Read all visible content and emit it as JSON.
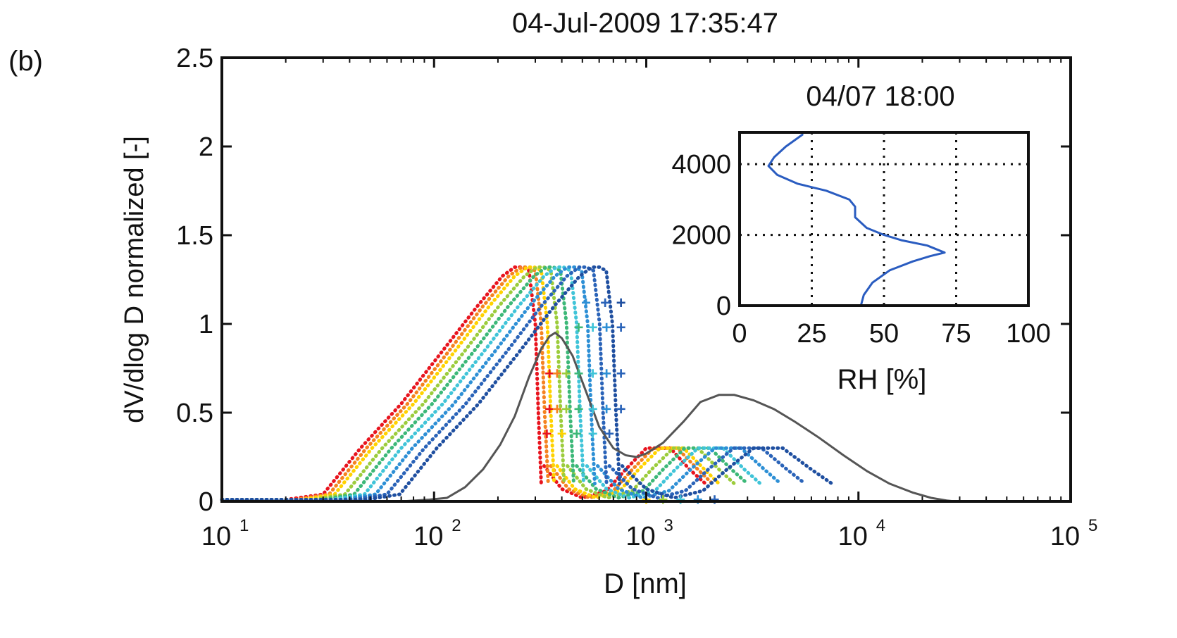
{
  "panel_label": "(b)",
  "chart_data": [
    {
      "type": "line",
      "title": "04-Jul-2009 17:35:47",
      "xlabel": "D [nm]",
      "ylabel": "dV/dlog D normalized [-]",
      "xscale": "log",
      "xlim": [
        10,
        100000
      ],
      "ylim": [
        0,
        2.5
      ],
      "x_ticks": [
        10,
        100,
        1000,
        10000,
        100000
      ],
      "x_tick_labels": [
        {
          "base": "10",
          "exp": "1"
        },
        {
          "base": "10",
          "exp": "2"
        },
        {
          "base": "10",
          "exp": "3"
        },
        {
          "base": "10",
          "exp": "4"
        },
        {
          "base": "10",
          "exp": "5"
        }
      ],
      "y_ticks": [
        0,
        0.5,
        1,
        1.5,
        2,
        2.5
      ],
      "y_tick_labels": [
        "0",
        "0.5",
        "1",
        "1.5",
        "2",
        "2.5"
      ],
      "grid": false,
      "colormap": [
        "#e8141e",
        "#f58220",
        "#ffd200",
        "#9ccc3c",
        "#3cb878",
        "#40c4d8",
        "#2d8fd5",
        "#2a63b8",
        "#1f4fa0"
      ],
      "colormap_note": "colored dotted curves are a family of distributions, red (first) to blue (last)",
      "series": [
        {
          "color": "#e8141e",
          "style": "dotted",
          "fine_mode": {
            "x": [
              10,
              20,
              30,
              45,
              70,
              110,
              160,
              210,
              240,
              260,
              280,
              300,
              310,
              320
            ],
            "y": [
              0.01,
              0.01,
              0.04,
              0.3,
              0.55,
              0.85,
              1.1,
              1.27,
              1.32,
              1.32,
              1.3,
              1.0,
              0.5,
              0.1
            ]
          },
          "coarse_mode": {
            "x": [
              330,
              400,
              500,
              650,
              800,
              1000,
              1300,
              1600,
              1900
            ],
            "y": [
              0.2,
              0.07,
              0.02,
              0.06,
              0.18,
              0.3,
              0.3,
              0.18,
              0.1
            ]
          }
        },
        {
          "color": "#f58220",
          "style": "dotted",
          "fine_mode": {
            "x": [
              10,
              22,
              32,
              48,
              75,
              118,
              170,
              225,
              258,
              278,
              300,
              320,
              332,
              345
            ],
            "y": [
              0.01,
              0.01,
              0.04,
              0.3,
              0.55,
              0.85,
              1.1,
              1.27,
              1.32,
              1.32,
              1.3,
              1.0,
              0.5,
              0.1
            ]
          },
          "coarse_mode": {
            "x": [
              355,
              430,
              540,
              700,
              860,
              1080,
              1400,
              1750,
              2050
            ],
            "y": [
              0.2,
              0.07,
              0.02,
              0.06,
              0.18,
              0.3,
              0.3,
              0.18,
              0.1
            ]
          }
        },
        {
          "color": "#ffd200",
          "style": "dotted",
          "fine_mode": {
            "x": [
              10,
              24,
              34,
              51,
              80,
              126,
              182,
              240,
              275,
              297,
              320,
              342,
              355,
              368
            ],
            "y": [
              0.01,
              0.01,
              0.04,
              0.3,
              0.55,
              0.85,
              1.1,
              1.27,
              1.32,
              1.32,
              1.3,
              1.0,
              0.5,
              0.1
            ]
          },
          "coarse_mode": {
            "x": [
              380,
              460,
              580,
              750,
              920,
              1160,
              1500,
              1880,
              2200
            ],
            "y": [
              0.2,
              0.07,
              0.02,
              0.06,
              0.18,
              0.3,
              0.3,
              0.18,
              0.1
            ]
          }
        },
        {
          "color": "#9ccc3c",
          "style": "dotted",
          "fine_mode": {
            "x": [
              10,
              27,
              38,
              57,
              89,
              140,
              202,
              267,
              305,
              330,
              355,
              380,
              395,
              410
            ],
            "y": [
              0.01,
              0.01,
              0.04,
              0.3,
              0.55,
              0.85,
              1.1,
              1.27,
              1.32,
              1.32,
              1.3,
              1.0,
              0.5,
              0.1
            ]
          },
          "coarse_mode": {
            "x": [
              425,
              520,
              660,
              860,
              1060,
              1340,
              1750,
              2200,
              2600
            ],
            "y": [
              0.2,
              0.07,
              0.02,
              0.06,
              0.18,
              0.3,
              0.3,
              0.18,
              0.1
            ]
          }
        },
        {
          "color": "#3cb878",
          "style": "dotted",
          "fine_mode": {
            "x": [
              10,
              30,
              42,
              63,
              98,
              155,
              224,
              296,
              338,
              366,
              394,
              421,
              438,
              455
            ],
            "y": [
              0.01,
              0.01,
              0.04,
              0.3,
              0.55,
              0.85,
              1.1,
              1.27,
              1.32,
              1.32,
              1.3,
              1.0,
              0.5,
              0.1
            ]
          },
          "coarse_mode": {
            "x": [
              470,
              580,
              740,
              970,
              1200,
              1520,
              2000,
              2520,
              3000
            ],
            "y": [
              0.2,
              0.07,
              0.02,
              0.06,
              0.18,
              0.3,
              0.3,
              0.18,
              0.1
            ]
          }
        },
        {
          "color": "#40c4d8",
          "style": "dotted",
          "fine_mode": {
            "x": [
              10,
              33,
              47,
              70,
              110,
              173,
              250,
              330,
              377,
              408,
              440,
              470,
              488,
              507
            ],
            "y": [
              0.01,
              0.01,
              0.04,
              0.3,
              0.55,
              0.85,
              1.1,
              1.27,
              1.32,
              1.32,
              1.3,
              1.0,
              0.5,
              0.1
            ]
          },
          "coarse_mode": {
            "x": [
              525,
              650,
              830,
              1100,
              1370,
              1750,
              2300,
              2900,
              3450
            ],
            "y": [
              0.2,
              0.07,
              0.02,
              0.06,
              0.18,
              0.3,
              0.3,
              0.18,
              0.1
            ]
          }
        },
        {
          "color": "#2d8fd5",
          "style": "dotted",
          "fine_mode": {
            "x": [
              10,
              37,
              53,
              79,
              124,
              195,
              281,
              372,
              425,
              460,
              496,
              530,
              550,
              572
            ],
            "y": [
              0.01,
              0.01,
              0.04,
              0.3,
              0.55,
              0.85,
              1.1,
              1.27,
              1.32,
              1.32,
              1.3,
              1.0,
              0.5,
              0.1
            ]
          },
          "coarse_mode": {
            "x": [
              590,
              740,
              960,
              1280,
              1620,
              2100,
              2800,
              3600,
              4300
            ],
            "y": [
              0.2,
              0.07,
              0.02,
              0.06,
              0.18,
              0.3,
              0.3,
              0.18,
              0.1
            ]
          }
        },
        {
          "color": "#2a63b8",
          "style": "dotted",
          "fine_mode": {
            "x": [
              10,
              42,
              60,
              90,
              141,
              222,
              320,
              423,
              483,
              523,
              564,
              603,
              626,
              650
            ],
            "y": [
              0.01,
              0.01,
              0.04,
              0.3,
              0.55,
              0.85,
              1.1,
              1.27,
              1.32,
              1.32,
              1.3,
              1.0,
              0.5,
              0.1
            ]
          },
          "coarse_mode": {
            "x": [
              670,
              860,
              1130,
              1530,
              1960,
              2580,
              3500,
              4600,
              5600
            ],
            "y": [
              0.2,
              0.07,
              0.02,
              0.06,
              0.18,
              0.3,
              0.3,
              0.18,
              0.1
            ]
          }
        },
        {
          "color": "#1f4fa0",
          "style": "dotted",
          "fine_mode": {
            "x": [
              10,
              48,
              69,
              103,
              162,
              255,
              368,
              486,
              555,
              601,
              648,
              693,
              720,
              748
            ],
            "y": [
              0.01,
              0.01,
              0.04,
              0.3,
              0.55,
              0.85,
              1.1,
              1.27,
              1.32,
              1.32,
              1.3,
              1.0,
              0.5,
              0.1
            ]
          },
          "coarse_mode": {
            "x": [
              770,
              1000,
              1350,
              1850,
              2400,
              3200,
              4400,
              6000,
              7500
            ],
            "y": [
              0.2,
              0.07,
              0.02,
              0.06,
              0.18,
              0.3,
              0.3,
              0.18,
              0.1
            ]
          }
        },
        {
          "color": "#555555",
          "style": "solid",
          "x": [
            10,
            70,
            95,
            115,
            140,
            170,
            205,
            240,
            280,
            320,
            350,
            372,
            400,
            450,
            520,
            600,
            700,
            800,
            900,
            1000,
            1200,
            1500,
            1800,
            2200,
            2600,
            3200,
            4000,
            5000,
            6500,
            8500,
            11000,
            14000,
            18000,
            22000,
            26000,
            28500
          ],
          "y": [
            0,
            0,
            0.01,
            0.02,
            0.08,
            0.18,
            0.32,
            0.48,
            0.7,
            0.86,
            0.93,
            0.95,
            0.92,
            0.82,
            0.62,
            0.42,
            0.3,
            0.26,
            0.25,
            0.27,
            0.33,
            0.45,
            0.56,
            0.6,
            0.6,
            0.57,
            0.52,
            0.45,
            0.36,
            0.26,
            0.17,
            0.1,
            0.05,
            0.02,
            0.005,
            0
          ]
        }
      ],
      "markers": [
        {
          "x": 350,
          "y": 0.72,
          "symbol": "+",
          "color": "#e8141e"
        },
        {
          "x": 350,
          "y": 0.52,
          "symbol": "+",
          "color": "#e8141e"
        },
        {
          "x": 380,
          "y": 0.72,
          "symbol": "+",
          "color": "#f58220"
        },
        {
          "x": 380,
          "y": 0.52,
          "symbol": "+",
          "color": "#f58220"
        },
        {
          "x": 420,
          "y": 0.72,
          "symbol": "+",
          "color": "#9ccc3c"
        },
        {
          "x": 420,
          "y": 0.52,
          "symbol": "+",
          "color": "#9ccc3c"
        },
        {
          "x": 480,
          "y": 0.72,
          "symbol": "+",
          "color": "#3cb878"
        },
        {
          "x": 480,
          "y": 0.52,
          "symbol": "+",
          "color": "#3cb878"
        },
        {
          "x": 560,
          "y": 0.72,
          "symbol": "+",
          "color": "#40c4d8"
        },
        {
          "x": 560,
          "y": 0.52,
          "symbol": "+",
          "color": "#40c4d8"
        },
        {
          "x": 650,
          "y": 0.72,
          "symbol": "+",
          "color": "#2d8fd5"
        },
        {
          "x": 650,
          "y": 0.52,
          "symbol": "+",
          "color": "#2d8fd5"
        },
        {
          "x": 760,
          "y": 0.72,
          "symbol": "+",
          "color": "#2a63b8"
        },
        {
          "x": 760,
          "y": 0.52,
          "symbol": "+",
          "color": "#2a63b8"
        },
        {
          "x": 480,
          "y": 0.98,
          "symbol": "+",
          "color": "#3cb878"
        },
        {
          "x": 560,
          "y": 0.98,
          "symbol": "+",
          "color": "#40c4d8"
        },
        {
          "x": 650,
          "y": 0.98,
          "symbol": "+",
          "color": "#2d8fd5"
        },
        {
          "x": 760,
          "y": 0.98,
          "symbol": "+",
          "color": "#2a63b8"
        },
        {
          "x": 520,
          "y": 1.12,
          "symbol": "+",
          "color": "#2d8fd5"
        },
        {
          "x": 640,
          "y": 1.12,
          "symbol": "+",
          "color": "#2a63b8"
        },
        {
          "x": 760,
          "y": 1.12,
          "symbol": "+",
          "color": "#1f4fa0"
        },
        {
          "x": 340,
          "y": 0.38,
          "symbol": "+",
          "color": "#e8141e"
        },
        {
          "x": 400,
          "y": 0.38,
          "symbol": "+",
          "color": "#ffd200"
        },
        {
          "x": 470,
          "y": 0.38,
          "symbol": "+",
          "color": "#3cb878"
        },
        {
          "x": 560,
          "y": 0.38,
          "symbol": "+",
          "color": "#40c4d8"
        },
        {
          "x": 670,
          "y": 0.38,
          "symbol": "+",
          "color": "#2a63b8"
        },
        {
          "x": 1000,
          "y": 0.01,
          "symbol": "+",
          "color": "#ffd200"
        },
        {
          "x": 1200,
          "y": 0.01,
          "symbol": "+",
          "color": "#9ccc3c"
        },
        {
          "x": 1450,
          "y": 0.01,
          "symbol": "+",
          "color": "#40c4d8"
        },
        {
          "x": 1750,
          "y": 0.01,
          "symbol": "+",
          "color": "#2d8fd5"
        },
        {
          "x": 2100,
          "y": 0.01,
          "symbol": "+",
          "color": "#2a63b8"
        }
      ]
    },
    {
      "type": "line",
      "title": "04/07 18:00",
      "xlabel": "RH [%]",
      "ylabel": "",
      "xlim": [
        0,
        100
      ],
      "ylim": [
        0,
        4900
      ],
      "x_ticks": [
        0,
        25,
        50,
        75,
        100
      ],
      "x_tick_labels": [
        "0",
        "25",
        "50",
        "75",
        "100"
      ],
      "y_ticks": [
        0,
        2000,
        4000
      ],
      "y_tick_labels": [
        "0",
        "2000",
        "4000"
      ],
      "grid": true,
      "grid_style": "dotted",
      "series": [
        {
          "color": "#2a5cc0",
          "x": [
            42,
            43,
            46,
            52,
            60,
            66,
            71,
            65,
            56,
            50,
            44,
            40,
            40,
            38,
            30,
            20,
            13,
            10,
            12,
            16,
            22
          ],
          "y": [
            0,
            300,
            650,
            1000,
            1250,
            1400,
            1500,
            1700,
            1850,
            2000,
            2200,
            2500,
            2800,
            3000,
            3250,
            3450,
            3700,
            3950,
            4200,
            4500,
            4850
          ]
        }
      ]
    }
  ]
}
